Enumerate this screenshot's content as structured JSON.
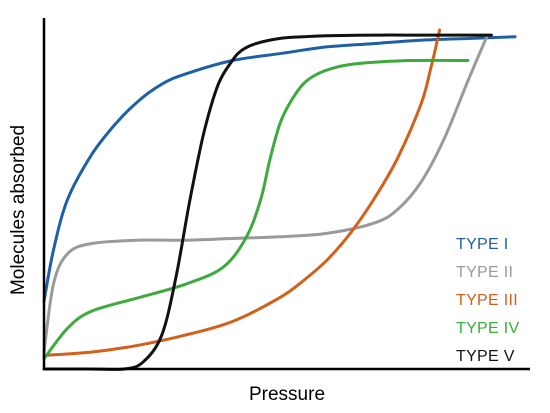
{
  "chart_data": {
    "type": "line",
    "title": "",
    "xlabel": "Pressure",
    "ylabel": "Molecules absorbed",
    "xlim": [
      0,
      100
    ],
    "ylim": [
      0,
      100
    ],
    "grid": false,
    "legend_position": "bottom-right",
    "series": [
      {
        "name": "TYPE I",
        "color": "#1f5fa6",
        "x": [
          0,
          2,
          5,
          10,
          15,
          20,
          25,
          30,
          40,
          50,
          60,
          70,
          80,
          90,
          100
        ],
        "y": [
          20,
          35,
          50,
          63,
          72,
          79,
          84,
          87,
          91,
          93,
          95,
          96,
          97,
          97.5,
          98
        ]
      },
      {
        "name": "TYPE II",
        "color": "#9a9a9a",
        "x": [
          0,
          2,
          5,
          10,
          20,
          30,
          40,
          50,
          60,
          70,
          75,
          80,
          85,
          90,
          94
        ],
        "y": [
          5,
          25,
          34,
          37,
          38,
          38,
          38.5,
          39,
          40,
          43,
          47,
          55,
          68,
          85,
          98
        ]
      },
      {
        "name": "TYPE III",
        "color": "#d2601a",
        "x": [
          0,
          10,
          20,
          30,
          40,
          50,
          55,
          60,
          65,
          70,
          75,
          80,
          82,
          84
        ],
        "y": [
          4,
          5,
          7,
          10,
          14,
          21,
          26,
          32,
          40,
          50,
          62,
          78,
          88,
          100
        ]
      },
      {
        "name": "TYPE IV",
        "color": "#3daa3d",
        "x": [
          0,
          5,
          10,
          20,
          30,
          38,
          43,
          46,
          48,
          50,
          52,
          55,
          58,
          62,
          66,
          70,
          78,
          90
        ],
        "y": [
          3,
          12,
          17,
          21,
          25,
          30,
          39,
          50,
          62,
          72,
          78,
          84,
          87,
          89,
          90,
          90.5,
          91,
          91
        ]
      },
      {
        "name": "TYPE V",
        "color": "#111111",
        "x": [
          0,
          10,
          17,
          21,
          25,
          28,
          31,
          34,
          37,
          40,
          42,
          45,
          50,
          55,
          60,
          70,
          80,
          90,
          95
        ],
        "y": [
          0,
          0,
          0,
          2,
          10,
          27,
          50,
          70,
          84,
          91,
          94,
          96,
          97.5,
          98,
          98.3,
          98.5,
          98.5,
          98.5,
          98.5
        ]
      }
    ]
  }
}
